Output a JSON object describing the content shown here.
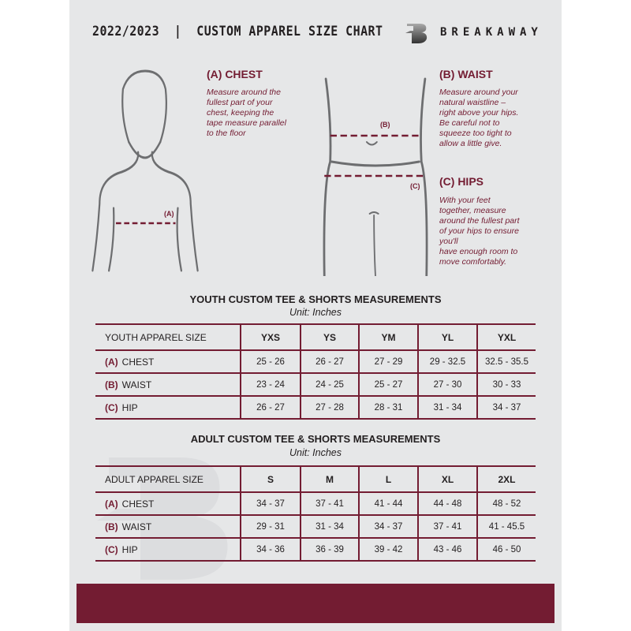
{
  "header": {
    "title": "2022/2023  |  CUSTOM APPAREL SIZE CHART",
    "brand": "BREAKAWAY",
    "logo_letter": "B"
  },
  "chest": {
    "heading": "(A) CHEST",
    "description": "Measure around the\nfullest part of your\nchest, keeping the\ntape measure parallel\nto the floor",
    "marker": "(A)"
  },
  "waist": {
    "heading": "(B) WAIST",
    "description": "Measure around your\nnatural waistline –\nright above your hips.\nBe careful not to\nsqueeze too tight to\nallow a little give.",
    "marker": "(B)"
  },
  "hips": {
    "heading": "(C) HIPS",
    "description": "With your feet\ntogether, measure\naround the fullest part\nof your hips to ensure\nyou'll\nhave enough room to\nmove comfortably.",
    "marker": "(C)"
  },
  "colors": {
    "accent": "#731c32",
    "background": "#e6e7e8",
    "text": "#231f20"
  },
  "youth": {
    "title": "YOUTH CUSTOM TEE & SHORTS MEASUREMENTS",
    "unit": "Unit: Inches",
    "size_label": "YOUTH APPAREL SIZE",
    "sizes": [
      "YXS",
      "YS",
      "YM",
      "YL",
      "YXL"
    ],
    "rows": [
      {
        "code": "(A)",
        "name": "CHEST",
        "values": [
          "25 - 26",
          "26 - 27",
          "27 - 29",
          "29 - 32.5",
          "32.5 - 35.5"
        ]
      },
      {
        "code": "(B)",
        "name": "WAIST",
        "values": [
          "23 - 24",
          "24 - 25",
          "25 - 27",
          "27 - 30",
          "30 - 33"
        ]
      },
      {
        "code": "(C)",
        "name": "HIP",
        "values": [
          "26 - 27",
          "27 - 28",
          "28 - 31",
          "31 - 34",
          "34 - 37"
        ]
      }
    ]
  },
  "adult": {
    "title": "ADULT CUSTOM TEE & SHORTS MEASUREMENTS",
    "unit": "Unit: Inches",
    "size_label": "ADULT APPAREL SIZE",
    "sizes": [
      "S",
      "M",
      "L",
      "XL",
      "2XL"
    ],
    "rows": [
      {
        "code": "(A)",
        "name": "CHEST",
        "values": [
          "34 - 37",
          "37 - 41",
          "41 - 44",
          "44 - 48",
          "48 - 52"
        ]
      },
      {
        "code": "(B)",
        "name": "WAIST",
        "values": [
          "29 - 31",
          "31 - 34",
          "34 - 37",
          "37 - 41",
          "41 - 45.5"
        ]
      },
      {
        "code": "(C)",
        "name": "HIP",
        "values": [
          "34 - 36",
          "36 - 39",
          "39 - 42",
          "43 - 46",
          "46 - 50"
        ]
      }
    ]
  }
}
